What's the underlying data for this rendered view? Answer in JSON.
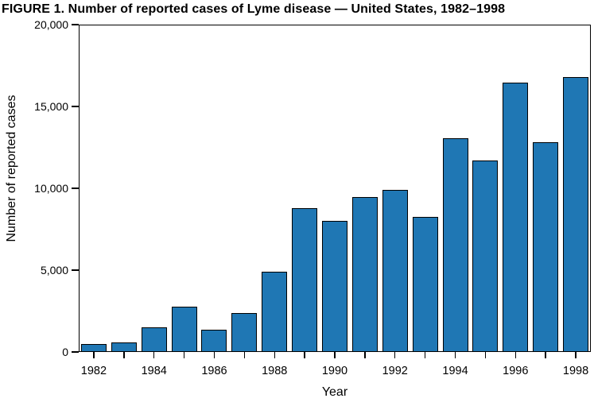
{
  "figure": {
    "title": "FIGURE 1. Number of reported cases of Lyme disease — United States, 1982–1998"
  },
  "chart_data": {
    "type": "bar",
    "title": "FIGURE 1. Number of reported cases of Lyme disease — United States, 1982–1998",
    "xlabel": "Year",
    "ylabel": "Number of reported cases",
    "categories": [
      "1982",
      "1983",
      "1984",
      "1985",
      "1986",
      "1987",
      "1988",
      "1989",
      "1990",
      "1991",
      "1992",
      "1993",
      "1994",
      "1995",
      "1996",
      "1997",
      "1998"
    ],
    "values": [
      497,
      599,
      1498,
      2748,
      1349,
      2368,
      4882,
      8803,
      7997,
      9470,
      9908,
      8257,
      13043,
      11700,
      16455,
      12801,
      16801
    ],
    "ylim": [
      0,
      20000
    ],
    "yticks": [
      0,
      5000,
      10000,
      15000,
      20000
    ],
    "ytick_labels": [
      "0",
      "5,000",
      "10,000",
      "15,000",
      "20,000"
    ],
    "xtick_labels": [
      "1982",
      "1984",
      "1986",
      "1988",
      "1990",
      "1992",
      "1994",
      "1996",
      "1998"
    ],
    "grid": false,
    "legend": "none",
    "bar_fill_color": "#1F77B4",
    "bar_edge_color": "#000000",
    "axis_color": "#000000",
    "background_color": "#FFFFFF"
  }
}
